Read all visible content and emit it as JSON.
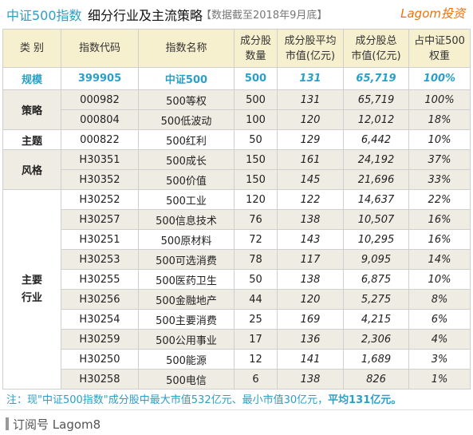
{
  "header": {
    "index_name": "中证500指数",
    "subtitle": "细分行业及主流策略",
    "date_note": "【数据截至2018年9月底】",
    "brand": "Lagom投资"
  },
  "columns": [
    "类 别",
    "指数代码",
    "指数名称",
    "成分股\n数量",
    "成分股平均\n市值(亿元)",
    "成分股总\n市值(亿元)",
    "占中证500\n权重"
  ],
  "scale_row": {
    "category": "规模",
    "code": "399905",
    "name": "中证500",
    "count": "500",
    "avg_cap": "131",
    "total_cap": "65,719",
    "weight": "100%"
  },
  "groups": {
    "strategy": "策略",
    "theme": "主题",
    "style": "风格",
    "industry": "主要\n行业"
  },
  "strategy_rows": [
    {
      "code": "000982",
      "name": "500等权",
      "count": "500",
      "avg_cap": "131",
      "total_cap": "65,719",
      "weight": "100%"
    },
    {
      "code": "000804",
      "name": "500低波动",
      "count": "100",
      "avg_cap": "120",
      "total_cap": "12,012",
      "weight": "18%"
    }
  ],
  "theme_rows": [
    {
      "code": "000822",
      "name": "500红利",
      "count": "50",
      "avg_cap": "129",
      "total_cap": "6,442",
      "weight": "10%"
    }
  ],
  "style_rows": [
    {
      "code": "H30351",
      "name": "500成长",
      "count": "150",
      "avg_cap": "161",
      "total_cap": "24,192",
      "weight": "37%"
    },
    {
      "code": "H30352",
      "name": "500价值",
      "count": "150",
      "avg_cap": "145",
      "total_cap": "21,696",
      "weight": "33%"
    }
  ],
  "industry_rows": [
    {
      "code": "H30252",
      "name": "500工业",
      "count": "120",
      "avg_cap": "122",
      "total_cap": "14,637",
      "weight": "22%"
    },
    {
      "code": "H30257",
      "name": "500信息技术",
      "count": "76",
      "avg_cap": "138",
      "total_cap": "10,507",
      "weight": "16%"
    },
    {
      "code": "H30251",
      "name": "500原材料",
      "count": "72",
      "avg_cap": "143",
      "total_cap": "10,295",
      "weight": "16%"
    },
    {
      "code": "H30253",
      "name": "500可选消费",
      "count": "78",
      "avg_cap": "117",
      "total_cap": "9,095",
      "weight": "14%"
    },
    {
      "code": "H30255",
      "name": "500医药卫生",
      "count": "50",
      "avg_cap": "138",
      "total_cap": "6,875",
      "weight": "10%"
    },
    {
      "code": "H30256",
      "name": "500金融地产",
      "count": "44",
      "avg_cap": "120",
      "total_cap": "5,275",
      "weight": "8%"
    },
    {
      "code": "H30254",
      "name": "500主要消费",
      "count": "25",
      "avg_cap": "169",
      "total_cap": "4,215",
      "weight": "6%"
    },
    {
      "code": "H30259",
      "name": "500公用事业",
      "count": "17",
      "avg_cap": "136",
      "total_cap": "2,306",
      "weight": "4%"
    },
    {
      "code": "H30250",
      "name": "500能源",
      "count": "12",
      "avg_cap": "141",
      "total_cap": "1,689",
      "weight": "3%"
    },
    {
      "code": "H30258",
      "name": "500电信",
      "count": "6",
      "avg_cap": "138",
      "total_cap": "826",
      "weight": "1%"
    }
  ],
  "note": {
    "prefix": "注：现\"中证500指数\"成分股中最大市值532亿元、最小市值30亿元，",
    "highlight": "平均131亿元。"
  },
  "footer": {
    "text": "订阅号 Lagom8"
  },
  "colors": {
    "accent": "#2aa0c8",
    "brand": "#e8730e",
    "header_bg": "#f6f0cf",
    "tint_bg": "#efece3"
  }
}
